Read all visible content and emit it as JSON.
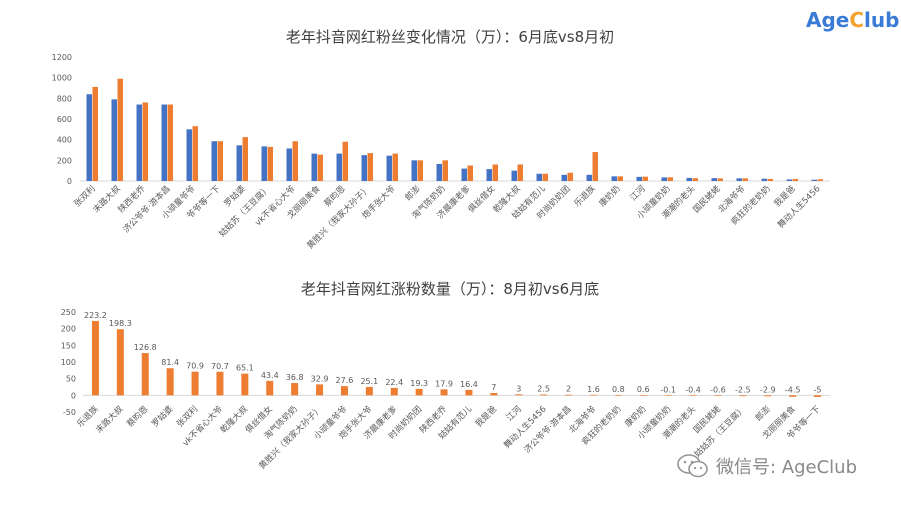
{
  "brand": {
    "logo_prefix": "Age",
    "logo_c": "C",
    "logo_suffix": "lub",
    "wechat_label": "微信号: AgeClub"
  },
  "colors": {
    "blue": "#4472c4",
    "orange": "#ed7d31",
    "axis": "#d9d9d9",
    "text": "#595959",
    "title": "#404040"
  },
  "chart_data": [
    {
      "type": "bar",
      "title": "老年抖音网红粉丝变化情况（万）：6月底vs8月初",
      "ylim": [
        0,
        1200
      ],
      "yticks": [
        0,
        200,
        400,
        600,
        800,
        1000,
        1200
      ],
      "categories": [
        "张双利",
        "末路大叔",
        "陕西老乔",
        "济公爷爷·游本昌",
        "小顽童爷爷",
        "爷爷等一下",
        "罗姑婆",
        "姑姑苏（王豆腐）",
        "vk不省心大爷",
        "戈丽丽美食",
        "蔡昀恩",
        "黄胜兴（我家大孙子）",
        "炮手张大爷",
        "郎澎",
        "淘气陈奶奶",
        "济晨康老爹",
        "俱丝借女",
        "乾隆大叔",
        "姑姑有范儿",
        "时尚奶奶团",
        "乐退族",
        "康奶奶",
        "江河",
        "小顽童奶奶",
        "潮潮的老头",
        "国民姥姥",
        "北海爷爷",
        "疯狂的老奶奶",
        "我是爸",
        "舞动人生5456"
      ],
      "series": [
        {
          "name": "6月底",
          "values": [
            840,
            790,
            740,
            740,
            500,
            385,
            345,
            335,
            315,
            265,
            265,
            250,
            245,
            200,
            165,
            120,
            115,
            100,
            70,
            60,
            60,
            45,
            40,
            35,
            30,
            28,
            26,
            22,
            15,
            12
          ]
        },
        {
          "name": "8月初",
          "values": [
            910,
            990,
            760,
            740,
            530,
            385,
            425,
            330,
            385,
            255,
            380,
            270,
            265,
            200,
            200,
            150,
            160,
            160,
            70,
            80,
            280,
            45,
            42,
            36,
            27,
            25,
            26,
            20,
            20,
            17
          ]
        }
      ]
    },
    {
      "type": "bar",
      "title": "老年抖音网红涨粉数量（万）：8月初vs6月底",
      "ylim": [
        -50,
        250
      ],
      "yticks": [
        -50,
        0,
        50,
        100,
        150,
        200,
        250
      ],
      "categories": [
        "乐退族",
        "末路大叔",
        "蔡昀恩",
        "罗姑婆",
        "张双利",
        "vk不省心大爷",
        "乾隆大叔",
        "俱丝借女",
        "淘气陈奶奶",
        "黄胜兴（我家大孙子）",
        "小顽童爷爷",
        "炮手张大爷",
        "济晨康老爹",
        "时尚奶奶团",
        "陕西老乔",
        "姑姑有范儿",
        "我是爸",
        "江河",
        "舞动人生5456",
        "济公爷爷·游本昌",
        "北海爷爷",
        "疯狂的老奶奶",
        "康奶奶",
        "小顽童奶奶",
        "潮潮的老头",
        "国民姥姥",
        "姑姑苏（王豆腐）",
        "郎澎",
        "戈丽丽美食",
        "爷爷等一下"
      ],
      "values": [
        223.2,
        198.3,
        126.8,
        81.4,
        70.9,
        70.7,
        65.1,
        43.4,
        36.8,
        32.9,
        27.6,
        25.1,
        22.4,
        19.3,
        17.9,
        16.4,
        7,
        3,
        2.5,
        2,
        1.6,
        0.8,
        0.6,
        -0.1,
        -0.4,
        -0.6,
        -2.5,
        -2.9,
        -4.5,
        -5
      ],
      "labels": [
        "223.2",
        "198.3",
        "126.8",
        "81.4",
        "70.9",
        "70.7",
        "65.1",
        "43.4",
        "36.8",
        "32.9",
        "27.6",
        "25.1",
        "22.4",
        "19.3",
        "17.9",
        "16.4",
        "7",
        "3",
        "2.5",
        "2",
        "1.6",
        "0.8",
        "0.6",
        "-0.1",
        "-0.4",
        "-0.6",
        "-2.5",
        "-2.9",
        "-4.5",
        "-5"
      ]
    }
  ]
}
